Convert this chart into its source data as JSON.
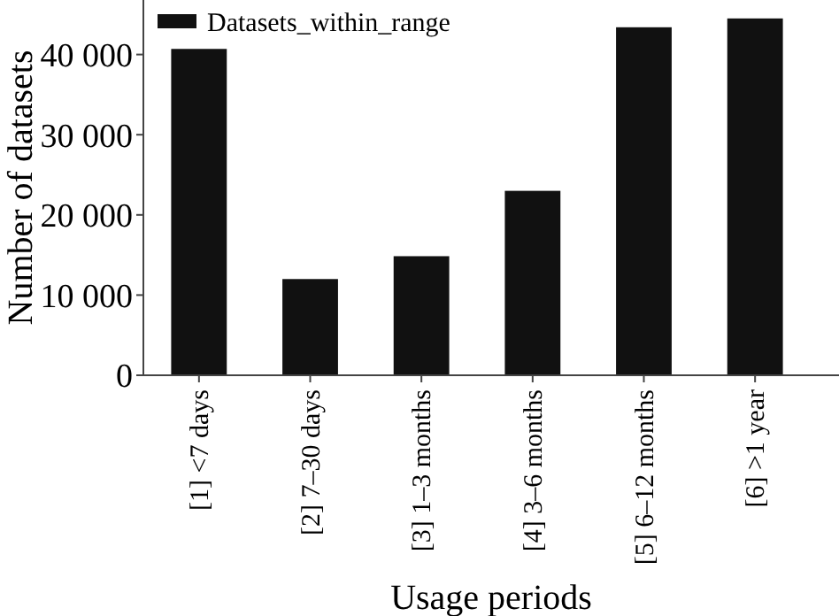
{
  "chart_data": {
    "type": "bar",
    "xlabel": "Usage periods",
    "ylabel": "Number of datasets",
    "categories": [
      "[1] <7 days",
      "[2] 7–30 days",
      "[3] 1–3 months",
      "[4] 3–6 months",
      "[5] 6–12 months",
      "[6] >1 year"
    ],
    "series": [
      {
        "name": "Datasets_within_range",
        "color": "#111111",
        "values": [
          40700,
          12000,
          14850,
          23000,
          43400,
          44500
        ]
      }
    ],
    "ylim": [
      0,
      46800
    ],
    "yticks": [
      {
        "value": 0,
        "label": "0"
      },
      {
        "value": 10000,
        "label": "10 000"
      },
      {
        "value": 20000,
        "label": "20 000"
      },
      {
        "value": 30000,
        "label": "30 000"
      },
      {
        "value": 40000,
        "label": "40 000"
      }
    ],
    "grid": false,
    "legend": "top left"
  }
}
